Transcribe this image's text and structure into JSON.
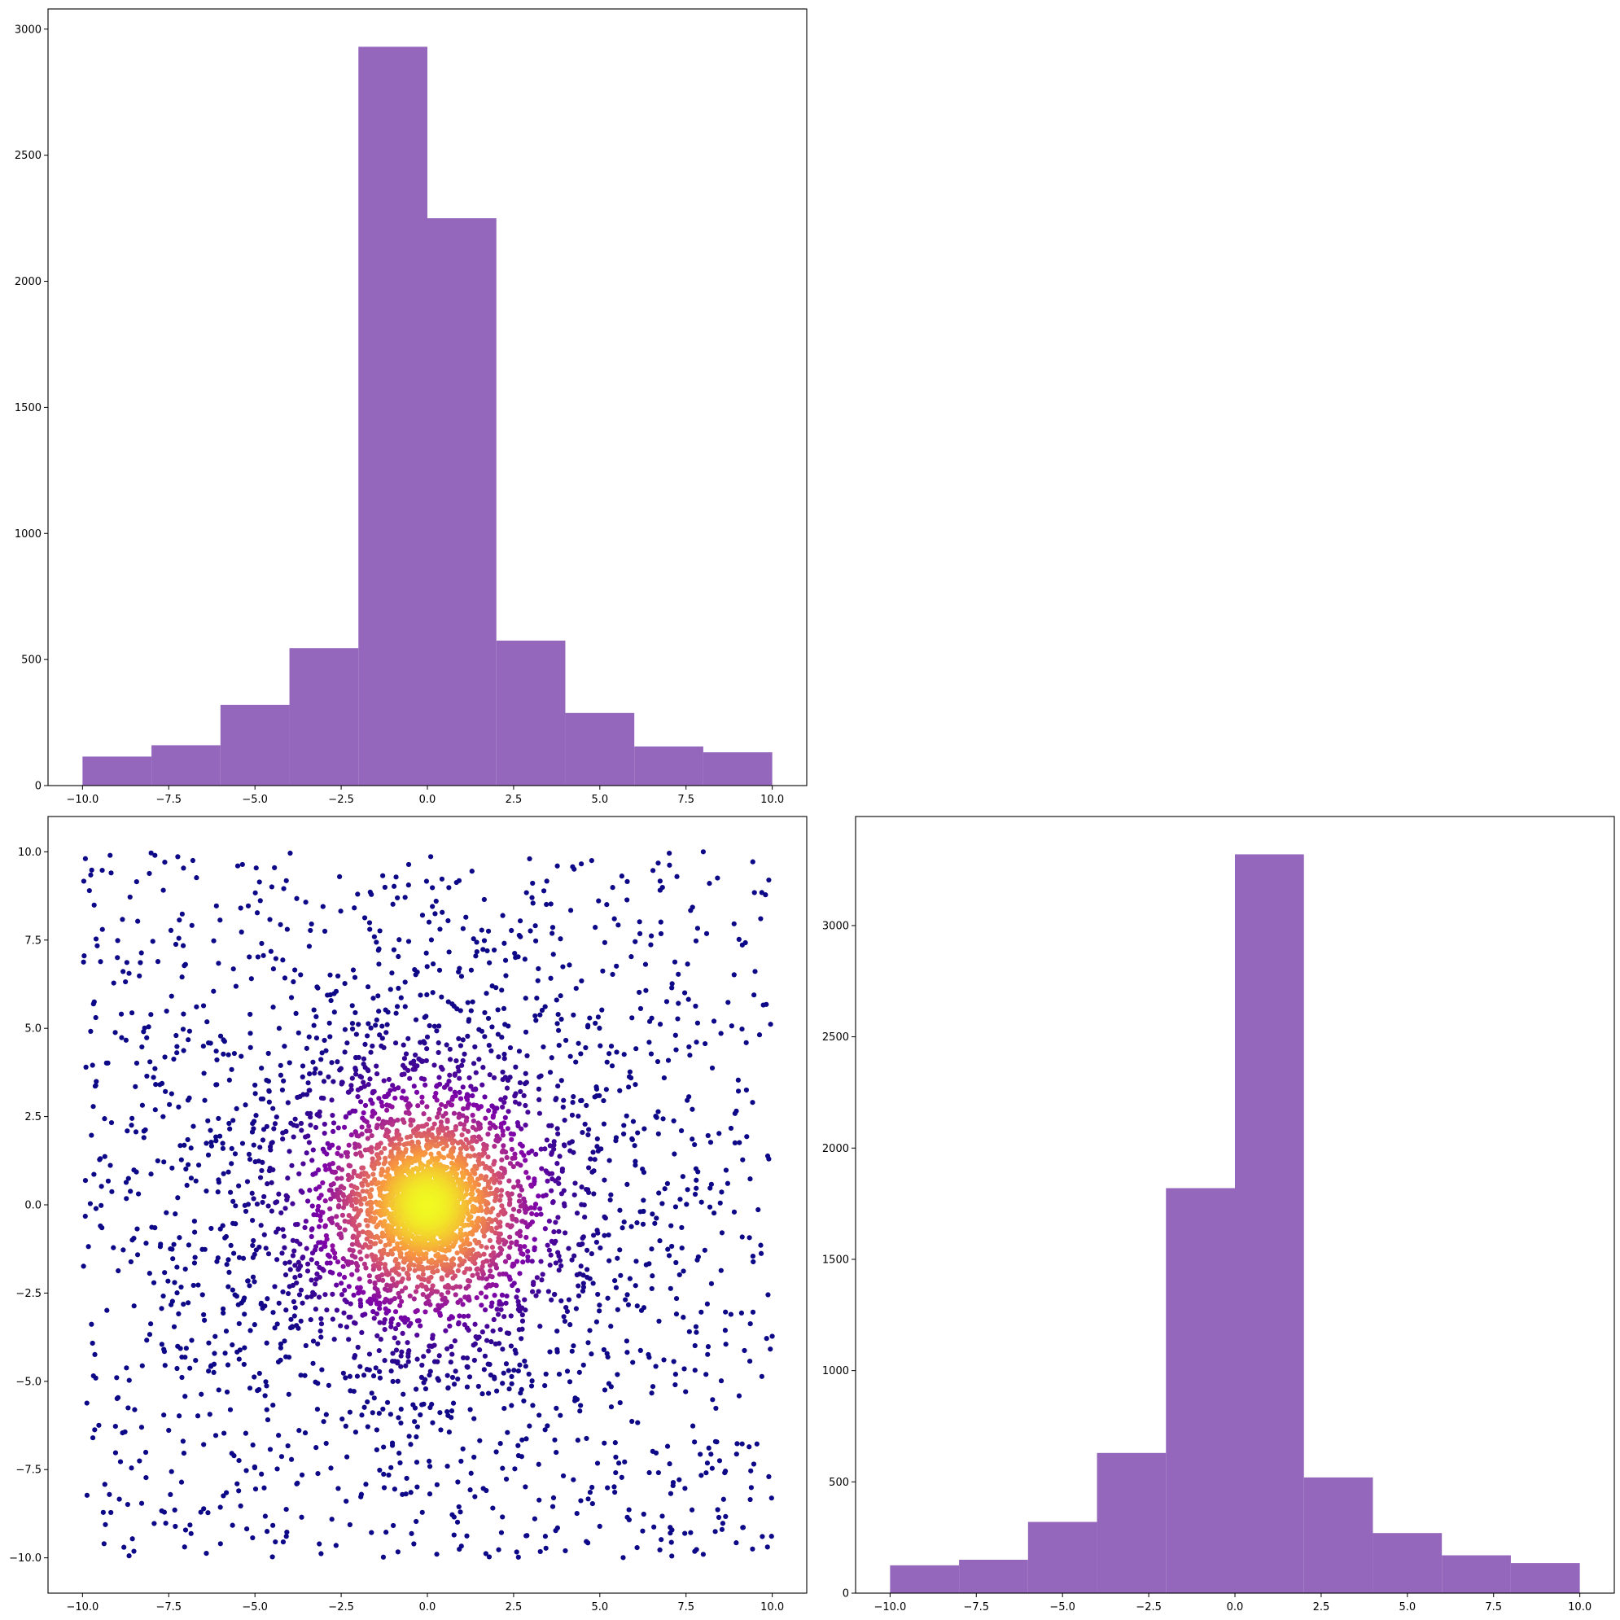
{
  "chart_data": [
    {
      "type": "bar",
      "title": "",
      "xlabel": "",
      "ylabel": "",
      "color": "#9467bd",
      "bin_edges": [
        -10,
        -8,
        -6,
        -4,
        -2,
        0,
        2,
        4,
        6,
        8,
        10
      ],
      "values": [
        115,
        160,
        320,
        545,
        2930,
        2250,
        575,
        288,
        155,
        132
      ],
      "xlim": [
        -11,
        11
      ],
      "ylim": [
        0,
        3080
      ],
      "xticks": [
        -10,
        -7.5,
        -5,
        -2.5,
        0,
        2.5,
        5,
        7.5,
        10
      ],
      "xtick_labels": [
        "−10.0",
        "−7.5",
        "−5.0",
        "−2.5",
        "0.0",
        "2.5",
        "5.0",
        "7.5",
        "10.0"
      ],
      "yticks": [
        0,
        500,
        1000,
        1500,
        2000,
        2500,
        3000
      ],
      "ytick_labels": [
        "0",
        "500",
        "1000",
        "1500",
        "2000",
        "2500",
        "3000"
      ]
    },
    {
      "type": "scatter",
      "title": "",
      "xlabel": "",
      "ylabel": "",
      "colormap": "plasma",
      "color_encodes": "point density (dense center yellow, sparse edges dark purple)",
      "point_count": 5000,
      "sample_points": [
        [
          -9.8,
          8.9
        ],
        [
          -9.2,
          9.9
        ],
        [
          -7.9,
          9.9
        ],
        [
          -5.5,
          9.6
        ],
        [
          8.0,
          10.0
        ],
        [
          9.9,
          9.2
        ],
        [
          -9.9,
          3.9
        ],
        [
          -9.7,
          -6.6
        ],
        [
          -8.8,
          -9.7
        ],
        [
          -6.0,
          -9.6
        ],
        [
          4.0,
          -9.8
        ],
        [
          8.0,
          -9.9
        ],
        [
          9.9,
          -7.7
        ],
        [
          9.9,
          1.3
        ],
        [
          0.0,
          0.0
        ],
        [
          1.0,
          -1.0
        ],
        [
          -1.2,
          0.8
        ],
        [
          2.5,
          2.0
        ],
        [
          -2.0,
          -2.5
        ]
      ],
      "xlim": [
        -11,
        11
      ],
      "ylim": [
        -11,
        11
      ],
      "xticks": [
        -10,
        -7.5,
        -5,
        -2.5,
        0,
        2.5,
        5,
        7.5,
        10
      ],
      "xtick_labels": [
        "−10.0",
        "−7.5",
        "−5.0",
        "−2.5",
        "0.0",
        "2.5",
        "5.0",
        "7.5",
        "10.0"
      ],
      "yticks": [
        -10,
        -7.5,
        -5,
        -2.5,
        0,
        2.5,
        5,
        7.5,
        10
      ],
      "ytick_labels": [
        "−10.0",
        "−7.5",
        "−5.0",
        "−2.5",
        "0.0",
        "2.5",
        "5.0",
        "7.5",
        "10.0"
      ]
    },
    {
      "type": "bar",
      "title": "",
      "xlabel": "",
      "ylabel": "",
      "color": "#9467bd",
      "bin_edges": [
        -10,
        -8,
        -6,
        -4,
        -2,
        0,
        2,
        4,
        6,
        8,
        10
      ],
      "values": [
        125,
        150,
        320,
        630,
        1820,
        3320,
        520,
        270,
        170,
        135
      ],
      "xlim": [
        -11,
        11
      ],
      "ylim": [
        0,
        3490
      ],
      "xticks": [
        -10,
        -7.5,
        -5,
        -2.5,
        0,
        2.5,
        5,
        7.5,
        10
      ],
      "xtick_labels": [
        "−10.0",
        "−7.5",
        "−5.0",
        "−2.5",
        "0.0",
        "2.5",
        "5.0",
        "7.5",
        "10.0"
      ],
      "yticks": [
        0,
        500,
        1000,
        1500,
        2000,
        2500,
        3000
      ],
      "ytick_labels": [
        "0",
        "500",
        "1000",
        "1500",
        "2000",
        "2500",
        "3000"
      ]
    }
  ]
}
